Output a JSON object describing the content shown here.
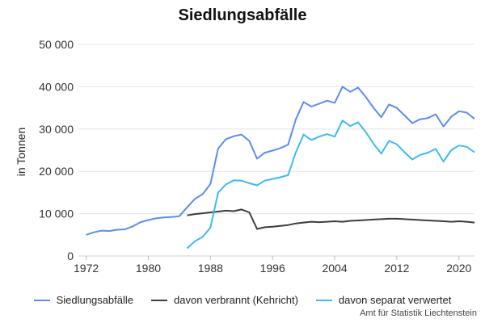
{
  "chart_data": {
    "type": "line",
    "title": "Siedlungsabfälle",
    "xlabel": "",
    "ylabel": "in Tonnen",
    "xlim": [
      1971,
      2022
    ],
    "ylim": [
      0,
      50000
    ],
    "x_ticks": [
      {
        "value": 1972,
        "label": "1972"
      },
      {
        "value": 1980,
        "label": "1980"
      },
      {
        "value": 1988,
        "label": "1988"
      },
      {
        "value": 1996,
        "label": "1996"
      },
      {
        "value": 2004,
        "label": "2004"
      },
      {
        "value": 2012,
        "label": "2012"
      },
      {
        "value": 2020,
        "label": "2020"
      }
    ],
    "y_ticks": [
      {
        "value": 0,
        "label": "0"
      },
      {
        "value": 10000,
        "label": "10 000"
      },
      {
        "value": 20000,
        "label": "20 000"
      },
      {
        "value": 30000,
        "label": "30 000"
      },
      {
        "value": 40000,
        "label": "40 000"
      },
      {
        "value": 50000,
        "label": "50 000"
      }
    ],
    "grid": true,
    "legend_position": "bottom",
    "series": [
      {
        "name": "Siedlungsabfälle",
        "color": "#5b8def",
        "x": [
          1972,
          1973,
          1974,
          1975,
          1976,
          1977,
          1978,
          1979,
          1980,
          1981,
          1982,
          1983,
          1984,
          1985,
          1986,
          1987,
          1988,
          1989,
          1990,
          1991,
          1992,
          1993,
          1994,
          1995,
          1996,
          1997,
          1998,
          1999,
          2000,
          2001,
          2002,
          2003,
          2004,
          2005,
          2006,
          2007,
          2008,
          2009,
          2010,
          2011,
          2012,
          2013,
          2014,
          2015,
          2016,
          2017,
          2018,
          2019,
          2020,
          2021,
          2022
        ],
        "values": [
          5000,
          5600,
          6000,
          5900,
          6200,
          6300,
          7000,
          8000,
          8500,
          8900,
          9100,
          9200,
          9400,
          11500,
          13500,
          14600,
          17000,
          25400,
          27600,
          28300,
          28700,
          27200,
          23000,
          24400,
          24900,
          25500,
          26300,
          32300,
          36400,
          35300,
          36000,
          36700,
          36200,
          40000,
          38800,
          39800,
          37600,
          35000,
          32800,
          35800,
          35000,
          33200,
          31400,
          32300,
          32600,
          33500,
          30600,
          32900,
          34200,
          33900,
          32400
        ]
      },
      {
        "name": "davon verbrannt (Kehricht)",
        "color": "#3d3d3d",
        "x": [
          1985,
          1986,
          1987,
          1988,
          1989,
          1990,
          1991,
          1992,
          1993,
          1994,
          1995,
          1996,
          1997,
          1998,
          1999,
          2000,
          2001,
          2002,
          2003,
          2004,
          2005,
          2006,
          2007,
          2008,
          2009,
          2010,
          2011,
          2012,
          2013,
          2014,
          2015,
          2016,
          2017,
          2018,
          2019,
          2020,
          2021,
          2022
        ],
        "values": [
          9600,
          9900,
          10100,
          10300,
          10500,
          10700,
          10600,
          11000,
          10300,
          6400,
          6800,
          6900,
          7100,
          7300,
          7700,
          7900,
          8100,
          8000,
          8100,
          8200,
          8100,
          8300,
          8400,
          8500,
          8600,
          8700,
          8800,
          8800,
          8700,
          8600,
          8500,
          8400,
          8300,
          8200,
          8100,
          8200,
          8100,
          7900
        ]
      },
      {
        "name": "davon separat verwertet",
        "color": "#3dbbee",
        "x": [
          1985,
          1986,
          1987,
          1988,
          1989,
          1990,
          1991,
          1992,
          1993,
          1994,
          1995,
          1996,
          1997,
          1998,
          1999,
          2000,
          2001,
          2002,
          2003,
          2004,
          2005,
          2006,
          2007,
          2008,
          2009,
          2010,
          2011,
          2012,
          2013,
          2014,
          2015,
          2016,
          2017,
          2018,
          2019,
          2020,
          2021,
          2022
        ],
        "values": [
          1800,
          3500,
          4500,
          6700,
          15000,
          16900,
          17900,
          17800,
          17200,
          16700,
          17800,
          18200,
          18600,
          19100,
          24500,
          28700,
          27400,
          28200,
          28800,
          28200,
          32000,
          30700,
          31600,
          29300,
          26500,
          24200,
          27200,
          26400,
          24500,
          22800,
          23900,
          24400,
          25300,
          22300,
          25000,
          26100,
          25800,
          24500
        ]
      }
    ]
  },
  "footer": {
    "credit": "Amt für Statistik Liechtenstein"
  }
}
